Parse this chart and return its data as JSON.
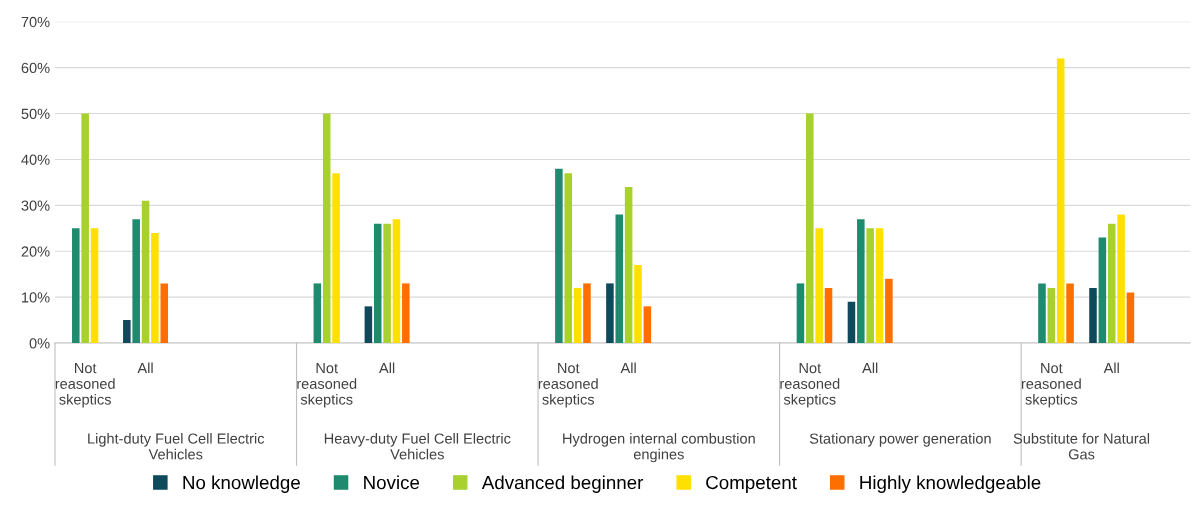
{
  "chart_data": {
    "type": "bar",
    "categories": [
      "Not\nreasoned\nskeptics",
      "All",
      null,
      null,
      "Not\nreasoned\nskeptics",
      "All",
      null,
      null,
      "Not\nreasoned\nskeptics",
      "All",
      null,
      null,
      "Not\nreasoned\nskeptics",
      "All",
      null,
      null,
      "Not\nreasoned\nskeptics",
      "All"
    ],
    "series": [
      {
        "name": "No knowledge",
        "color": "#0e4a5c",
        "values": [
          null,
          5,
          null,
          null,
          null,
          8,
          null,
          null,
          null,
          13,
          null,
          null,
          null,
          9,
          null,
          null,
          null,
          12
        ]
      },
      {
        "name": "Novice",
        "color": "#1e8a6e",
        "values": [
          25,
          27,
          null,
          null,
          13,
          26,
          null,
          null,
          38,
          28,
          null,
          null,
          13,
          27,
          null,
          null,
          13,
          23
        ]
      },
      {
        "name": "Advanced beginner",
        "color": "#a8d12e",
        "values": [
          50,
          31,
          null,
          null,
          50,
          26,
          null,
          null,
          37,
          34,
          null,
          null,
          50,
          25,
          null,
          null,
          12,
          26
        ]
      },
      {
        "name": "Competent",
        "color": "#ffe000",
        "values": [
          25,
          24,
          null,
          null,
          37,
          27,
          null,
          null,
          12,
          17,
          null,
          null,
          25,
          25,
          null,
          null,
          62,
          28
        ]
      },
      {
        "name": "Highly knowledgeable",
        "color": "#ff6f00",
        "values": [
          null,
          13,
          null,
          null,
          null,
          13,
          null,
          null,
          13,
          8,
          null,
          null,
          12,
          14,
          null,
          null,
          13,
          11
        ]
      }
    ],
    "annotations": [
      "Light-duty Fuel Cell Electric\nVehicles",
      "Heavy-duty Fuel Cell Electric\nVehicles",
      "Hydrogen internal combustion\nengines",
      "Stationary power generation",
      "Substitute for Natural\nGas"
    ],
    "ylim": [
      0,
      70
    ],
    "yticks": [
      {
        "value": 0,
        "label": "0%"
      },
      {
        "value": 10,
        "label": "10%"
      },
      {
        "value": 20,
        "label": "20%"
      },
      {
        "value": 30,
        "label": "30%"
      },
      {
        "value": 40,
        "label": "40%"
      },
      {
        "value": 50,
        "label": "50%"
      },
      {
        "value": 60,
        "label": "60%"
      },
      {
        "value": 70,
        "label": "70%"
      }
    ],
    "grid": "y",
    "legend": "bottom"
  }
}
